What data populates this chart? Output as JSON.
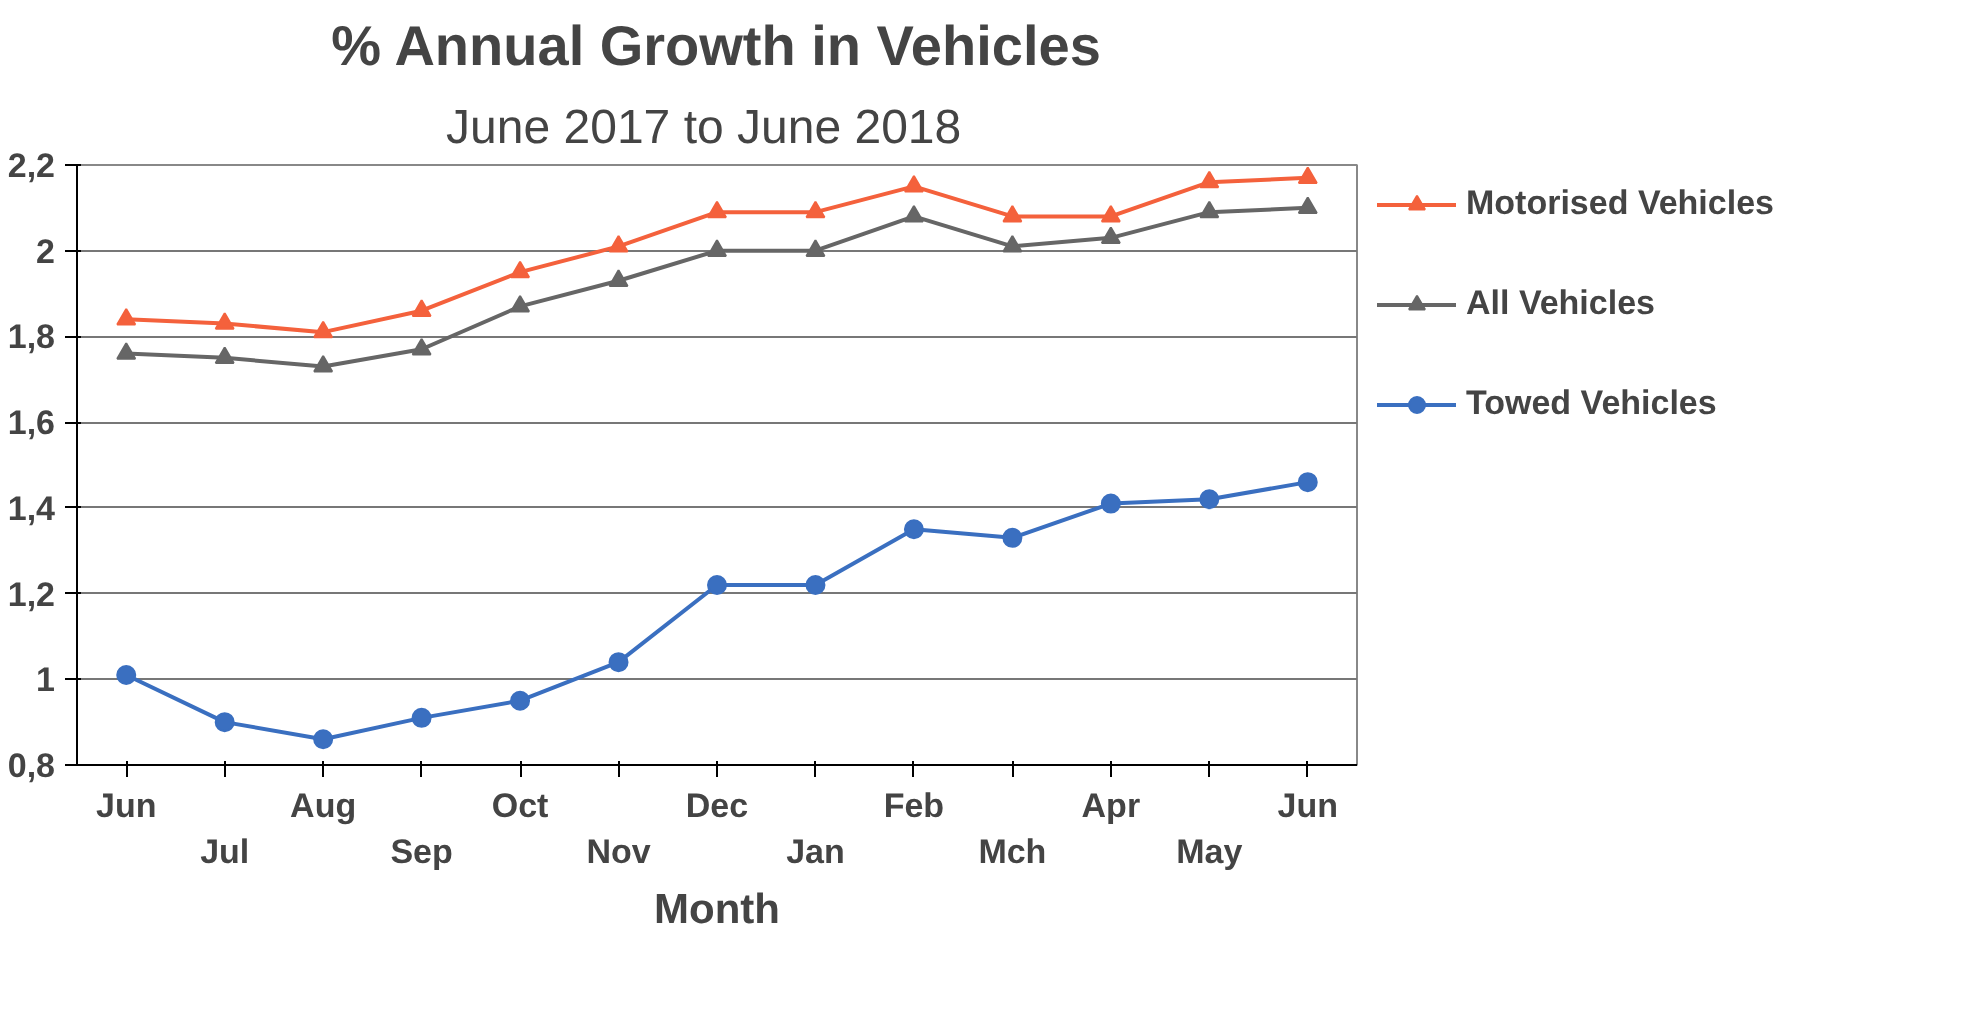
{
  "chart_data": {
    "type": "line",
    "title": "% Annual Growth in Vehicles",
    "subtitle": "June 2017  to June  2018",
    "xlabel": "Month",
    "categories": [
      "Jun",
      "Jul",
      "Aug",
      "Sep",
      "Oct",
      "Nov",
      "Dec",
      "Jan",
      "Feb",
      "Mch",
      "Apr",
      "May",
      "Jun"
    ],
    "series": [
      {
        "name": "Motorised Vehicles",
        "color": "#f4613c",
        "marker": "triangle",
        "values": [
          1.84,
          1.83,
          1.81,
          1.86,
          1.95,
          2.01,
          2.09,
          2.09,
          2.15,
          2.08,
          2.08,
          2.16,
          2.17
        ]
      },
      {
        "name": "All Vehicles",
        "color": "#666666",
        "marker": "triangle",
        "values": [
          1.76,
          1.75,
          1.73,
          1.77,
          1.87,
          1.93,
          2.0,
          2.0,
          2.08,
          2.01,
          2.03,
          2.09,
          2.1
        ]
      },
      {
        "name": "Towed Vehicles",
        "color": "#3a6fc0",
        "marker": "circle",
        "values": [
          1.01,
          0.9,
          0.86,
          0.91,
          0.95,
          1.04,
          1.22,
          1.22,
          1.35,
          1.33,
          1.41,
          1.42,
          1.46
        ]
      }
    ],
    "ylim": [
      0.8,
      2.2
    ],
    "yticks": [
      {
        "value": 0.8,
        "label": "0,8"
      },
      1,
      {
        "value": 1.2,
        "label": "1,2"
      },
      {
        "value": 1.4,
        "label": "1,4"
      },
      {
        "value": 1.6,
        "label": "1,6"
      },
      {
        "value": 1.8,
        "label": "1,8"
      },
      2,
      {
        "value": 2.2,
        "label": "2,2"
      }
    ],
    "grid": "y",
    "legend": "right",
    "line_style": "solid"
  }
}
